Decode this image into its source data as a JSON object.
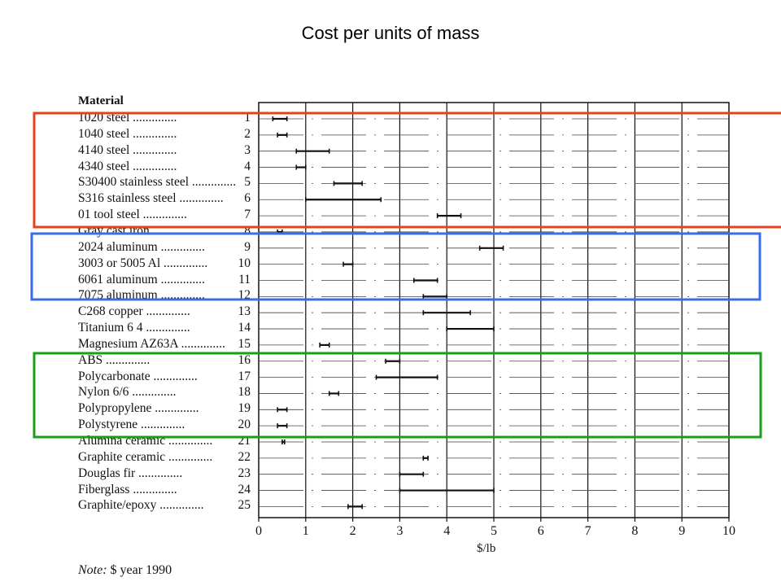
{
  "title": "Cost per units of mass",
  "header": "Material",
  "note_prefix": "Note:",
  "note_text": "$ year 1990",
  "colors": {
    "red_box": "#e8401c",
    "blue_box": "#3a6ee8",
    "green_box": "#17a017",
    "ink": "#111111"
  },
  "chart_data": {
    "type": "range-bar",
    "xlabel": "$/lb",
    "xlim": [
      0,
      10
    ],
    "xticks": [
      "0",
      "1",
      "2",
      "3",
      "4",
      "5",
      "6",
      "7",
      "8",
      "9",
      "10"
    ],
    "grid": true,
    "materials": [
      {
        "name": "1020 steel",
        "num": "1",
        "low": 0.3,
        "high": 0.6
      },
      {
        "name": "1040 steel",
        "num": "2",
        "low": 0.4,
        "high": 0.6
      },
      {
        "name": "4140 steel",
        "num": "3",
        "low": 0.8,
        "high": 1.5
      },
      {
        "name": "4340 steel",
        "num": "4",
        "low": 0.8,
        "high": 1.0
      },
      {
        "name": "S30400 stainless steel",
        "num": "5",
        "low": 1.6,
        "high": 2.2
      },
      {
        "name": "S316 stainless steel",
        "num": "6",
        "low": 1.0,
        "high": 2.6
      },
      {
        "name": "01 tool steel",
        "num": "7",
        "low": 3.8,
        "high": 4.3
      },
      {
        "name": "Gray cast iron",
        "num": "8",
        "low": 0.4,
        "high": 0.5
      },
      {
        "name": "2024 aluminum",
        "num": "9",
        "low": 4.7,
        "high": 5.2
      },
      {
        "name": "3003 or 5005 Al",
        "num": "10",
        "low": 1.8,
        "high": 2.0
      },
      {
        "name": "6061 aluminum",
        "num": "11",
        "low": 3.3,
        "high": 3.8
      },
      {
        "name": "7075 aluminum",
        "num": "12",
        "low": 3.5,
        "high": 4.0
      },
      {
        "name": "C268 copper",
        "num": "13",
        "low": 3.5,
        "high": 4.5
      },
      {
        "name": "Titanium 6 4",
        "num": "14",
        "low": 4.0,
        "high": 5.0
      },
      {
        "name": "Magnesium AZ63A",
        "num": "15",
        "low": 1.3,
        "high": 1.5
      },
      {
        "name": "ABS",
        "num": "16",
        "low": 2.7,
        "high": 3.0
      },
      {
        "name": "Polycarbonate",
        "num": "17",
        "low": 2.5,
        "high": 3.8
      },
      {
        "name": "Nylon 6/6",
        "num": "18",
        "low": 1.5,
        "high": 1.7
      },
      {
        "name": "Polypropylene",
        "num": "19",
        "low": 0.4,
        "high": 0.6
      },
      {
        "name": "Polystyrene",
        "num": "20",
        "low": 0.4,
        "high": 0.6
      },
      {
        "name": "Alumina ceramic",
        "num": "21",
        "low": 0.5,
        "high": 0.55
      },
      {
        "name": "Graphite ceramic",
        "num": "22",
        "low": 3.5,
        "high": 3.6
      },
      {
        "name": "Douglas fir",
        "num": "23",
        "low": 3.0,
        "high": 3.5
      },
      {
        "name": "Fiberglass",
        "num": "24",
        "low": 3.0,
        "high": 5.0
      },
      {
        "name": "Graphite/epoxy",
        "num": "25",
        "low": 1.9,
        "high": 2.2
      }
    ]
  }
}
